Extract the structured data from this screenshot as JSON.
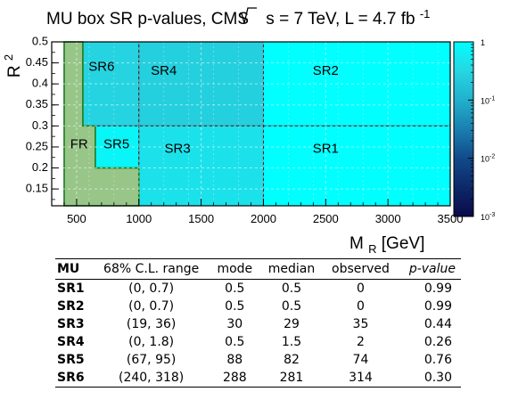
{
  "chart_data": {
    "type": "heatmap",
    "title": {
      "prefix": "MU box SR p-values, CMS",
      "sqrt_s": "s = 7 TeV, L = 4.7 fb",
      "sup": "-1"
    },
    "xlabel": {
      "main": "M",
      "sub": "R",
      "unit": " [GeV]"
    },
    "ylabel": {
      "main": "R",
      "sup": "2"
    },
    "xlim": [
      300,
      3500
    ],
    "ylim": [
      0.11,
      0.5
    ],
    "x_ticks": [
      500,
      1000,
      1500,
      2000,
      2500,
      3000,
      3500
    ],
    "x_tick_labels": [
      "500",
      "1000",
      "1500",
      "2000",
      "2500",
      "3000",
      "3500"
    ],
    "y_ticks": [
      0.15,
      0.2,
      0.25,
      0.3,
      0.35,
      0.4,
      0.45,
      0.5
    ],
    "y_tick_labels": [
      "0.15",
      "0.2",
      "0.25",
      "0.3",
      "0.35",
      "0.4",
      "0.45",
      "0.5"
    ],
    "grid": true,
    "regions": [
      {
        "name": "SR6",
        "x": [
          400,
          1000
        ],
        "y": [
          0.3,
          0.5
        ],
        "p_value": 0.3
      },
      {
        "name": "SR4",
        "x": [
          1000,
          2000
        ],
        "y": [
          0.3,
          0.5
        ],
        "p_value": 0.26
      },
      {
        "name": "SR2",
        "x": [
          2000,
          3500
        ],
        "y": [
          0.3,
          0.5
        ],
        "p_value": 0.99
      },
      {
        "name": "SR5",
        "x": [
          650,
          1000
        ],
        "y": [
          0.2,
          0.3
        ],
        "p_value": 0.76
      },
      {
        "name": "SR3",
        "x": [
          1000,
          2000
        ],
        "y": [
          0.11,
          0.3
        ],
        "p_value": 0.44
      },
      {
        "name": "SR1",
        "x": [
          2000,
          3500
        ],
        "y": [
          0.11,
          0.3
        ],
        "p_value": 0.99
      }
    ],
    "fit_region": {
      "name": "FR",
      "outline": [
        [
          400,
          0.11
        ],
        [
          400,
          0.5
        ],
        [
          550,
          0.5
        ],
        [
          550,
          0.3
        ],
        [
          650,
          0.3
        ],
        [
          650,
          0.2
        ],
        [
          1000,
          0.2
        ],
        [
          1000,
          0.11
        ]
      ],
      "color": "#98c689"
    },
    "colorbar": {
      "scale": "log",
      "range": [
        0.001,
        1
      ],
      "ticks": [
        1,
        0.1,
        0.01,
        0.001
      ],
      "tick_labels": [
        {
          "base": "1",
          "exp": ""
        },
        {
          "base": "10",
          "exp": "-1"
        },
        {
          "base": "10",
          "exp": "-2"
        },
        {
          "base": "10",
          "exp": "-3"
        }
      ],
      "colors": [
        "#0a0a4a",
        "#0d2868",
        "#114a8a",
        "#1a7fb0",
        "#21b0cc",
        "#26d6e2",
        "#00ffff"
      ]
    }
  },
  "table": {
    "columns": [
      "MU",
      "68% C.L. range",
      "mode",
      "median",
      "observed",
      "p-value"
    ],
    "rows": [
      {
        "region": "SR1",
        "range": "(0, 0.7)",
        "mode": "0.5",
        "median": "0.5",
        "observed": "0",
        "pvalue": "0.99"
      },
      {
        "region": "SR2",
        "range": "(0, 0.7)",
        "mode": "0.5",
        "median": "0.5",
        "observed": "0",
        "pvalue": "0.99"
      },
      {
        "region": "SR3",
        "range": "(19, 36)",
        "mode": "30",
        "median": "29",
        "observed": "35",
        "pvalue": "0.44"
      },
      {
        "region": "SR4",
        "range": "(0, 1.8)",
        "mode": "0.5",
        "median": "1.5",
        "observed": "2",
        "pvalue": "0.26"
      },
      {
        "region": "SR5",
        "range": "(67, 95)",
        "mode": "88",
        "median": "82",
        "observed": "74",
        "pvalue": "0.76"
      },
      {
        "region": "SR6",
        "range": "(240, 318)",
        "mode": "288",
        "median": "281",
        "observed": "314",
        "pvalue": "0.30"
      }
    ]
  }
}
